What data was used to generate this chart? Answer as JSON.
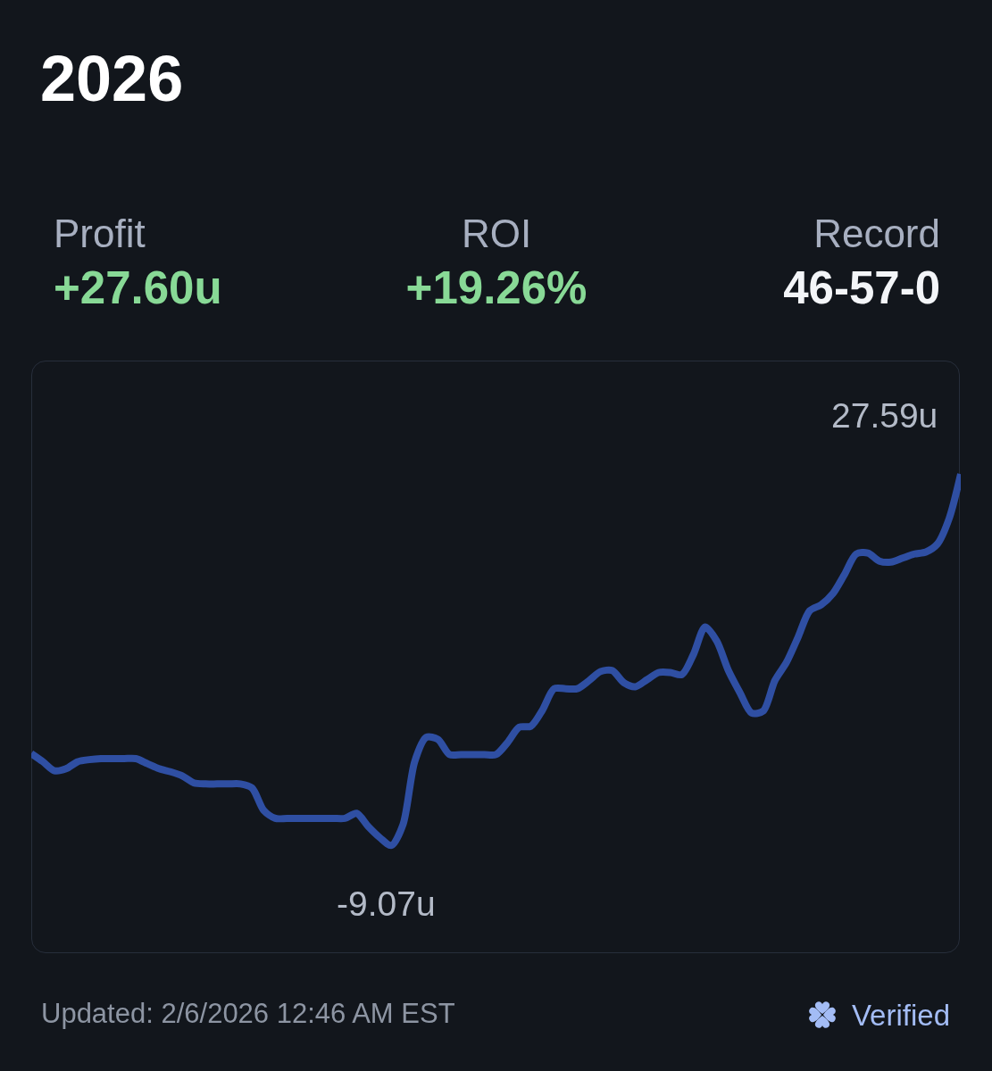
{
  "chart_data": {
    "type": "line",
    "title": "2026",
    "annotations": [
      "Profit",
      "+27.60u",
      "ROI",
      "+19.26%",
      "Record",
      "46-57-0",
      "Updated: 2/6/2026 12:46 AM EST",
      "Verified"
    ],
    "categories": [
      null,
      null,
      null,
      null,
      null,
      null,
      null,
      null,
      null,
      null,
      null,
      null,
      null,
      null,
      null,
      null,
      null,
      null,
      null,
      null,
      null,
      null,
      null,
      null,
      null,
      null,
      null,
      null,
      null,
      null,
      null,
      null,
      null,
      null,
      null,
      null,
      null,
      null,
      null,
      null,
      null,
      null,
      null,
      null,
      null,
      null,
      null,
      null,
      null,
      null,
      null,
      null,
      null,
      null,
      null,
      null,
      null,
      null,
      null,
      null,
      null,
      null,
      null,
      null,
      null,
      null,
      null,
      null,
      null,
      null,
      null,
      null,
      null,
      null,
      null,
      null,
      null,
      null,
      null,
      null,
      null
    ],
    "values": [
      0,
      -0.8,
      -1.7,
      -1.5,
      -0.8,
      -0.6,
      -0.5,
      -0.5,
      -0.5,
      -0.5,
      -1.0,
      -1.5,
      -1.8,
      -2.2,
      -2.9,
      -3.0,
      -3.0,
      -3.0,
      -3.0,
      -3.4,
      -5.6,
      -6.4,
      -6.4,
      -6.4,
      -6.4,
      -6.4,
      -6.4,
      -6.4,
      -5.9,
      -7.2,
      -8.3,
      -9.07,
      -7.0,
      -0.8,
      1.6,
      1.4,
      -0.1,
      -0.1,
      -0.1,
      -0.1,
      -0.1,
      1.1,
      2.6,
      2.7,
      4.3,
      6.4,
      6.4,
      6.4,
      7.2,
      8.1,
      8.2,
      7.0,
      6.6,
      7.3,
      8.0,
      8.0,
      7.8,
      9.8,
      12.5,
      11.1,
      8.2,
      6.0,
      4.0,
      4.2,
      7.2,
      9.0,
      11.5,
      14.1,
      14.7,
      15.8,
      17.7,
      19.7,
      19.8,
      19.0,
      18.9,
      19.3,
      19.7,
      19.9,
      20.7,
      23.2,
      27.59
    ],
    "value_labels": [
      null,
      null,
      null,
      null,
      null,
      null,
      null,
      null,
      null,
      null,
      null,
      null,
      null,
      null,
      null,
      null,
      null,
      null,
      null,
      null,
      null,
      null,
      null,
      null,
      null,
      null,
      null,
      null,
      null,
      null,
      null,
      "-9.07u",
      null,
      null,
      null,
      null,
      null,
      null,
      null,
      null,
      null,
      null,
      null,
      null,
      null,
      null,
      null,
      null,
      null,
      null,
      null,
      null,
      null,
      null,
      null,
      null,
      null,
      null,
      null,
      null,
      null,
      null,
      null,
      null,
      null,
      null,
      null,
      null,
      null,
      null,
      null,
      null,
      null,
      null,
      null,
      null,
      null,
      null,
      null,
      null,
      "27.59u"
    ],
    "color": "#2f4fa3",
    "ylim": [
      -19.8,
      38.8
    ],
    "tick_labels": false
  }
}
